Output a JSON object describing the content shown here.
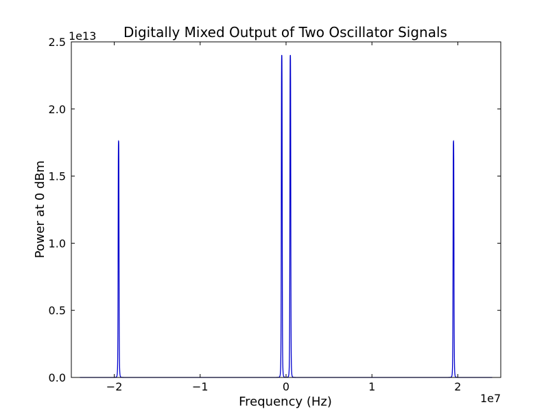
{
  "chart_data": {
    "type": "line",
    "title": "Digitally Mixed Output of Two Oscillator Signals",
    "xlabel": "Frequency (Hz)",
    "ylabel": "Power at 0 dBm",
    "x_offset_label": "1e7",
    "y_offset_label": "1e13",
    "x_multiplier": 10000000,
    "y_multiplier": 10000000000000,
    "xlim": [
      -25000000,
      25000000
    ],
    "ylim": [
      0,
      25000000000000
    ],
    "xticks": [
      -20000000,
      -10000000,
      0,
      10000000,
      20000000
    ],
    "xtick_labels": [
      "−2",
      "−1",
      "0",
      "1",
      "2"
    ],
    "yticks": [
      0,
      5000000000000,
      10000000000000,
      15000000000000,
      20000000000000,
      25000000000000
    ],
    "ytick_labels": [
      "0.0",
      "0.5",
      "1.0",
      "1.5",
      "2.0",
      "2.5"
    ],
    "grid": false,
    "line_color": "#0000cc",
    "peaks": [
      {
        "x": -19500000,
        "y": 17600000000000
      },
      {
        "x": -500000,
        "y": 24000000000000
      },
      {
        "x": 500000,
        "y": 24000000000000
      },
      {
        "x": 19500000,
        "y": 17600000000000
      }
    ]
  }
}
